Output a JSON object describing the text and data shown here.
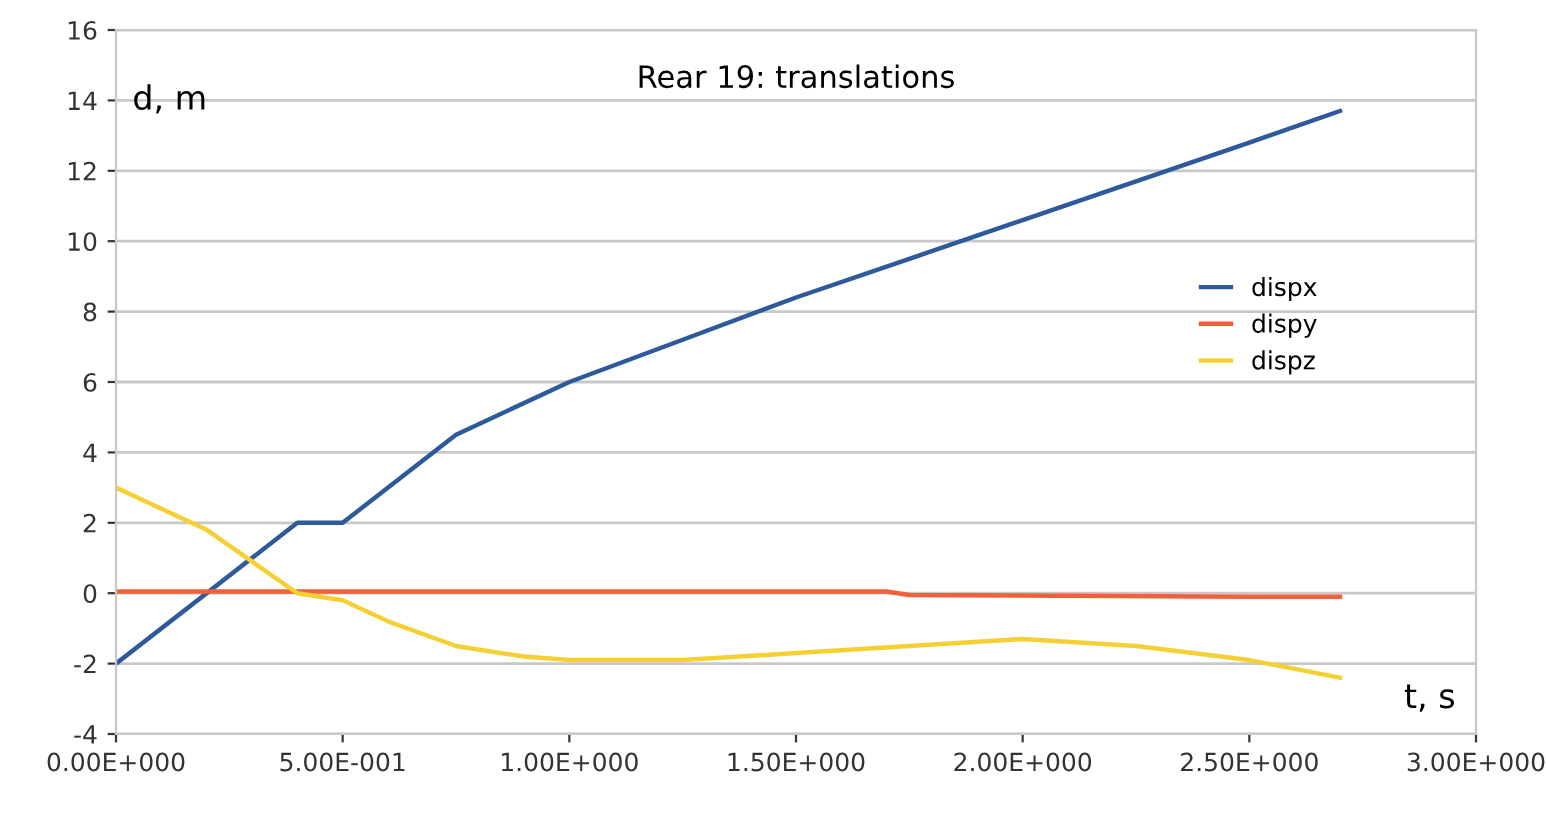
{
  "chart_data": {
    "type": "line",
    "title": "Rear 19: translations",
    "xlabel": "t, s",
    "ylabel": "d, m",
    "xlim": [
      0,
      3
    ],
    "xticks": [
      {
        "value": 0,
        "label": "0.00E+000"
      },
      {
        "value": 0.5,
        "label": "5.00E-001"
      },
      {
        "value": 1,
        "label": "1.00E+000"
      },
      {
        "value": 1.5,
        "label": "1.50E+000"
      },
      {
        "value": 2,
        "label": "2.00E+000"
      },
      {
        "value": 2.5,
        "label": "2.50E+000"
      },
      {
        "value": 3,
        "label": "3.00E+000"
      }
    ],
    "ylim": [
      -4,
      16
    ],
    "yticks": [
      -4,
      -2,
      0,
      2,
      4,
      6,
      8,
      10,
      12,
      14,
      16
    ],
    "grid": "y",
    "legend": "right",
    "marker": "none",
    "line_style": "solid",
    "series": [
      {
        "name": "dispx",
        "color": "#2e5a9c",
        "x": [
          0,
          0.4,
          0.5,
          0.75,
          1.0,
          1.25,
          1.5,
          1.75,
          2.0,
          2.25,
          2.5,
          2.7
        ],
        "values": [
          -2,
          2,
          2,
          4.5,
          6,
          7.2,
          8.4,
          9.5,
          10.6,
          11.7,
          12.8,
          13.7
        ]
      },
      {
        "name": "dispy",
        "color": "#f0603a",
        "x": [
          0,
          1.7,
          1.75,
          2.5,
          2.7
        ],
        "values": [
          0.05,
          0.05,
          -0.05,
          -0.1,
          -0.1
        ]
      },
      {
        "name": "dispz",
        "color": "#f5d033",
        "x": [
          0,
          0.2,
          0.4,
          0.5,
          0.6,
          0.75,
          0.9,
          1.0,
          1.25,
          1.5,
          1.75,
          2.0,
          2.25,
          2.5,
          2.7
        ],
        "values": [
          3,
          1.8,
          0,
          -0.2,
          -0.8,
          -1.5,
          -1.8,
          -1.9,
          -1.9,
          -1.7,
          -1.5,
          -1.3,
          -1.5,
          -1.9,
          -2.4
        ]
      }
    ]
  }
}
